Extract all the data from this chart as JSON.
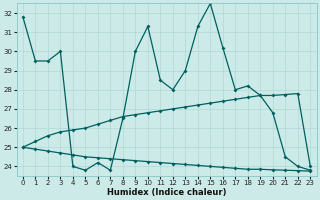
{
  "xlabel": "Humidex (Indice chaleur)",
  "ylabel": "",
  "bg_color": "#cceae8",
  "grid_color": "#b0d8d4",
  "line_color": "#006060",
  "xlim": [
    -0.5,
    23.5
  ],
  "ylim": [
    23.5,
    32.5
  ],
  "yticks": [
    24,
    25,
    26,
    27,
    28,
    29,
    30,
    31,
    32
  ],
  "xticks": [
    0,
    1,
    2,
    3,
    4,
    5,
    6,
    7,
    8,
    9,
    10,
    11,
    12,
    13,
    14,
    15,
    16,
    17,
    18,
    19,
    20,
    21,
    22,
    23
  ],
  "line1_x": [
    0,
    1,
    2,
    3,
    4,
    5,
    6,
    7,
    8,
    9,
    10,
    11,
    12,
    13,
    14,
    15,
    16,
    17,
    18,
    19,
    20,
    21,
    22,
    23
  ],
  "line1_y": [
    31.8,
    29.5,
    29.5,
    30.0,
    24.0,
    23.8,
    24.2,
    23.8,
    26.5,
    30.0,
    31.3,
    28.5,
    28.0,
    29.0,
    31.3,
    32.5,
    30.2,
    28.0,
    28.2,
    27.7,
    26.8,
    24.5,
    24.0,
    23.8
  ],
  "line2_x": [
    0,
    1,
    2,
    3,
    4,
    5,
    6,
    7,
    8,
    9,
    10,
    11,
    12,
    13,
    14,
    15,
    16,
    17,
    18,
    19,
    20,
    21,
    22,
    23
  ],
  "line2_y": [
    25.0,
    25.3,
    25.6,
    25.8,
    25.9,
    26.0,
    26.2,
    26.4,
    26.6,
    26.7,
    26.8,
    26.9,
    27.0,
    27.1,
    27.2,
    27.3,
    27.4,
    27.5,
    27.6,
    27.7,
    27.7,
    27.75,
    27.8,
    24.0
  ],
  "line3_x": [
    0,
    1,
    2,
    3,
    4,
    5,
    6,
    7,
    8,
    9,
    10,
    11,
    12,
    13,
    14,
    15,
    16,
    17,
    18,
    19,
    20,
    21,
    22,
    23
  ],
  "line3_y": [
    25.0,
    24.9,
    24.8,
    24.7,
    24.6,
    24.5,
    24.45,
    24.4,
    24.35,
    24.3,
    24.25,
    24.2,
    24.15,
    24.1,
    24.05,
    24.0,
    23.95,
    23.9,
    23.85,
    23.85,
    23.82,
    23.8,
    23.78,
    23.75
  ]
}
